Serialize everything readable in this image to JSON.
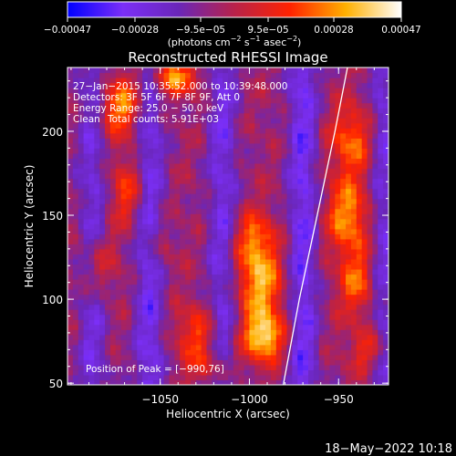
{
  "chart_data": {
    "type": "heatmap",
    "title": "Reconstructed RHESSI Image",
    "xlabel": "Heliocentric X (arcsec)",
    "ylabel": "Heliocentric Y (arcsec)",
    "xlim": [
      -1102,
      -922
    ],
    "ylim": [
      49,
      238
    ],
    "x_ticks": [
      -1050,
      -1000,
      -950
    ],
    "x_tick_labels": [
      "−1050",
      "−1000",
      "−950"
    ],
    "y_ticks": [
      50,
      100,
      150,
      200
    ],
    "y_tick_labels": [
      "50",
      "100",
      "150",
      "200"
    ],
    "colorbar": {
      "range": [
        -0.00047,
        0.00047
      ],
      "ticks": [
        -0.00047,
        -0.00028,
        -9.5e-05,
        9.5e-05,
        0.00028,
        0.00047
      ],
      "tick_labels": [
        "−0.00047",
        "−0.00028",
        "−9.5e−05",
        "9.5e−05",
        "0.00028",
        "0.00047"
      ],
      "units_prefix": "(photons cm",
      "units_exp1": "−2",
      "units_mid1": " s",
      "units_exp2": "−1",
      "units_mid2": " asec",
      "units_exp3": "−2",
      "units_suffix": ")",
      "colors": [
        "#0000ff",
        "#7b2ff7",
        "#6a26b8",
        "#b8224a",
        "#ff2200",
        "#ffb000",
        "#ffffff"
      ]
    },
    "annotations": {
      "line1": "27−Jan−2015 10:35:52.000 to 10:39:48.000",
      "line2": "Detectors: 3F 5F 6F 7F 8F 9F, Att 0",
      "line3": "Energy Range: 25.0 − 50.0 keV",
      "line4_label": "Clean",
      "line4_value": "Total counts: 5.91E+03",
      "peak": "Position of Peak = [−990,76]"
    },
    "limb": [
      [
        -981,
        49
      ],
      [
        -972,
        100
      ],
      [
        -962,
        150
      ],
      [
        -952,
        200
      ],
      [
        -945,
        238
      ]
    ],
    "sources": [
      {
        "x": -992,
        "y": 78,
        "sx": 8,
        "sy": 10,
        "amp": 0.00046
      },
      {
        "x": -994,
        "y": 108,
        "sx": 9,
        "sy": 14,
        "amp": 0.00036
      },
      {
        "x": -997,
        "y": 135,
        "sx": 8,
        "sy": 12,
        "amp": 0.0003
      },
      {
        "x": -945,
        "y": 150,
        "sx": 8,
        "sy": 16,
        "amp": 0.00034
      },
      {
        "x": -940,
        "y": 110,
        "sx": 7,
        "sy": 14,
        "amp": 0.00026
      },
      {
        "x": -943,
        "y": 195,
        "sx": 8,
        "sy": 14,
        "amp": 0.00028
      },
      {
        "x": -1072,
        "y": 215,
        "sx": 9,
        "sy": 12,
        "amp": 0.00033
      },
      {
        "x": -1068,
        "y": 165,
        "sx": 7,
        "sy": 14,
        "amp": 0.00022
      },
      {
        "x": -1085,
        "y": 120,
        "sx": 7,
        "sy": 14,
        "amp": 0.0002
      },
      {
        "x": -1043,
        "y": 232,
        "sx": 10,
        "sy": 7,
        "amp": 0.00034
      },
      {
        "x": -1030,
        "y": 80,
        "sx": 8,
        "sy": 12,
        "amp": 0.00022
      },
      {
        "x": -1020,
        "y": 60,
        "sx": 9,
        "sy": 8,
        "amp": 0.00018
      },
      {
        "x": -932,
        "y": 70,
        "sx": 8,
        "sy": 9,
        "amp": 0.0002
      },
      {
        "x": -1050,
        "y": 130,
        "sx": 5,
        "sy": 10,
        "amp": 0.00012
      }
    ],
    "stripes": [
      {
        "x": -1088,
        "w": 6,
        "amp": -0.0002
      },
      {
        "x": -1056,
        "w": 6,
        "amp": -0.00024
      },
      {
        "x": -1015,
        "w": 6,
        "amp": -0.00022
      },
      {
        "x": -970,
        "w": 6,
        "amp": -0.00026
      },
      {
        "x": -925,
        "w": 5,
        "amp": -0.0002
      }
    ]
  },
  "footer": {
    "date": "18−May−2022 10:18"
  }
}
